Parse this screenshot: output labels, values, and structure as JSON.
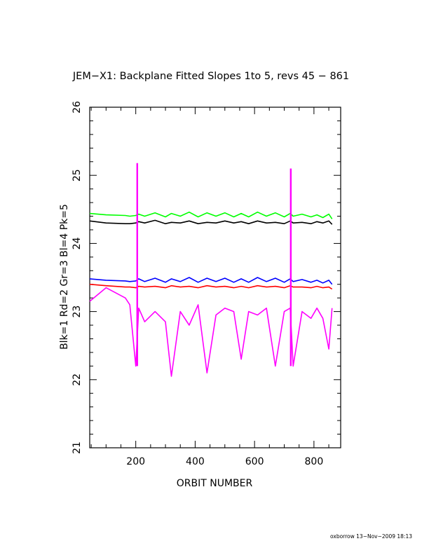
{
  "chart_data": {
    "type": "line",
    "title": "JEM−X1: Backplane Fitted Slopes 1to 5, revs 45 − 861",
    "xlabel": "ORBIT NUMBER",
    "ylabel": "Blk=1 Rd=2 Gr=3 Bl=4 Pk=5",
    "xlim": [
      45,
      890
    ],
    "ylim": [
      21,
      26
    ],
    "x_ticks": [
      200,
      400,
      600,
      800
    ],
    "y_ticks": [
      21,
      22,
      23,
      24,
      25,
      26
    ],
    "grid": false,
    "legend": "none",
    "x": [
      45,
      100,
      165,
      180,
      200,
      210,
      230,
      265,
      300,
      320,
      350,
      380,
      410,
      440,
      470,
      500,
      530,
      555,
      580,
      610,
      640,
      670,
      700,
      720,
      730,
      760,
      790,
      810,
      830,
      850,
      861
    ],
    "series": [
      {
        "color": "#000000",
        "values": [
          24.33,
          24.3,
          24.29,
          24.29,
          24.3,
          24.32,
          24.3,
          24.34,
          24.29,
          24.31,
          24.3,
          24.33,
          24.29,
          24.31,
          24.3,
          24.33,
          24.3,
          24.32,
          24.29,
          24.33,
          24.3,
          24.31,
          24.29,
          24.33,
          24.3,
          24.31,
          24.29,
          24.32,
          24.3,
          24.33,
          24.28
        ]
      },
      {
        "color": "#ff0000",
        "values": [
          23.4,
          23.38,
          23.36,
          23.36,
          23.35,
          23.37,
          23.36,
          23.37,
          23.35,
          23.38,
          23.36,
          23.37,
          23.35,
          23.38,
          23.36,
          23.37,
          23.35,
          23.37,
          23.35,
          23.38,
          23.36,
          23.37,
          23.35,
          23.38,
          23.36,
          23.36,
          23.35,
          23.37,
          23.35,
          23.36,
          23.33
        ]
      },
      {
        "color": "#00ff00",
        "values": [
          24.44,
          24.42,
          24.41,
          24.4,
          24.41,
          24.43,
          24.4,
          24.45,
          24.39,
          24.44,
          24.4,
          24.46,
          24.39,
          24.45,
          24.4,
          24.45,
          24.39,
          24.44,
          24.39,
          24.46,
          24.4,
          24.45,
          24.39,
          24.44,
          24.4,
          24.43,
          24.39,
          24.42,
          24.38,
          24.43,
          24.36
        ]
      },
      {
        "color": "#0000ff",
        "values": [
          23.48,
          23.46,
          23.45,
          23.44,
          23.45,
          23.48,
          23.44,
          23.49,
          23.43,
          23.48,
          23.44,
          23.5,
          23.43,
          23.49,
          23.44,
          23.49,
          23.43,
          23.48,
          23.43,
          23.5,
          23.44,
          23.49,
          23.43,
          23.48,
          23.44,
          23.47,
          23.43,
          23.46,
          23.42,
          23.46,
          23.4
        ]
      },
      {
        "color": "#ff00ff",
        "values": [
          23.15,
          23.35,
          23.2,
          23.1,
          22.2,
          23.05,
          22.85,
          23.0,
          22.85,
          22.05,
          23.0,
          22.8,
          23.1,
          22.1,
          22.95,
          23.05,
          23.0,
          22.3,
          23.0,
          22.95,
          23.05,
          22.2,
          23.0,
          23.05,
          22.2,
          23.0,
          22.9,
          23.05,
          22.9,
          22.45,
          23.05
        ]
      }
    ],
    "spikes": [
      {
        "x": 205,
        "y": 25.18
      },
      {
        "x": 722,
        "y": 25.1
      }
    ],
    "footer": "oxborrow 13−Nov−2009 18:13"
  }
}
